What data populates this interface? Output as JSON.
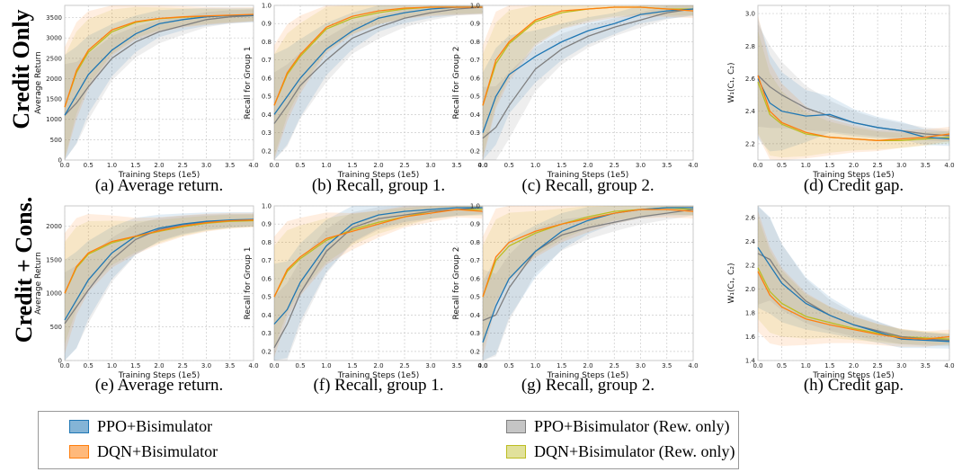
{
  "row_labels": [
    "Credit Only",
    "Credit + Cons."
  ],
  "legend": [
    {
      "label": "PPO+Bisimulator",
      "color": "#1f77b4"
    },
    {
      "label": "DQN+Bisimulator",
      "color": "#ff7f0e"
    },
    {
      "label": "PPO+Bisimulator (Rew. only)",
      "color": "#7f7f7f"
    },
    {
      "label": "DQN+Bisimulator (Rew. only)",
      "color": "#bcbd22"
    }
  ],
  "chart_data": [
    {
      "type": "line",
      "caption": "(a) Average return.",
      "xlabel": "Training Steps (1e5)",
      "ylabel": "Average Return",
      "xlim": [
        0,
        4
      ],
      "ylim": [
        0,
        3800
      ],
      "xticks": [
        "0.0",
        "0.5",
        "1.0",
        "1.5",
        "2.0",
        "2.5",
        "3.0",
        "3.5",
        "4.0"
      ],
      "yticks": [
        "0",
        "500",
        "1000",
        "1500",
        "2000",
        "2500",
        "3000",
        "3500"
      ],
      "grid": true,
      "x": [
        0,
        0.25,
        0.5,
        1,
        1.5,
        2,
        2.5,
        3,
        3.5,
        4
      ],
      "series": [
        {
          "name": "PPO+Bisimulator",
          "values": [
            1100,
            1600,
            2100,
            2700,
            3100,
            3350,
            3450,
            3520,
            3550,
            3560
          ]
        },
        {
          "name": "DQN+Bisimulator",
          "values": [
            1300,
            2200,
            2700,
            3200,
            3400,
            3480,
            3520,
            3540,
            3560,
            3580
          ]
        },
        {
          "name": "PPO+Bisimulator (Rew. only)",
          "values": [
            1100,
            1400,
            1800,
            2500,
            2900,
            3150,
            3300,
            3450,
            3520,
            3550
          ]
        },
        {
          "name": "DQN+Bisimulator (Rew. only)",
          "values": [
            1300,
            2150,
            2650,
            3150,
            3380,
            3470,
            3510,
            3530,
            3550,
            3570
          ]
        }
      ]
    },
    {
      "type": "line",
      "caption": "(b) Recall, group 1.",
      "xlabel": "Training Steps (1e5)",
      "ylabel": "Recall for Group 1",
      "xlim": [
        0,
        4
      ],
      "ylim": [
        0.15,
        1.0
      ],
      "xticks": [
        "0.0",
        "0.5",
        "1.0",
        "1.5",
        "2.0",
        "2.5",
        "3.0",
        "3.5",
        "4.0"
      ],
      "yticks": [
        "0.2",
        "0.3",
        "0.4",
        "0.5",
        "0.6",
        "0.7",
        "0.8",
        "0.9",
        "1.0"
      ],
      "grid": true,
      "x": [
        0,
        0.25,
        0.5,
        1,
        1.5,
        2,
        2.5,
        3,
        3.5,
        4
      ],
      "series": [
        {
          "name": "PPO+Bisimulator",
          "values": [
            0.4,
            0.5,
            0.6,
            0.76,
            0.86,
            0.93,
            0.96,
            0.98,
            0.99,
            0.99
          ]
        },
        {
          "name": "DQN+Bisimulator",
          "values": [
            0.45,
            0.63,
            0.73,
            0.88,
            0.94,
            0.97,
            0.985,
            0.99,
            0.99,
            0.99
          ]
        },
        {
          "name": "PPO+Bisimulator (Rew. only)",
          "values": [
            0.35,
            0.45,
            0.56,
            0.7,
            0.82,
            0.88,
            0.93,
            0.96,
            0.98,
            0.99
          ]
        },
        {
          "name": "DQN+Bisimulator (Rew. only)",
          "values": [
            0.45,
            0.62,
            0.72,
            0.87,
            0.93,
            0.96,
            0.98,
            0.99,
            0.99,
            0.99
          ]
        }
      ]
    },
    {
      "type": "line",
      "caption": "(c) Recall, group 2.",
      "xlabel": "Training Steps (1e5)",
      "ylabel": "Recall for Group 2",
      "xlim": [
        0,
        4
      ],
      "ylim": [
        0.15,
        1.0
      ],
      "xticks": [
        "0.0",
        "0.5",
        "1.0",
        "1.5",
        "2.0",
        "2.5",
        "3.0",
        "3.5",
        "4.0"
      ],
      "yticks": [
        "0.2",
        "0.3",
        "0.4",
        "0.5",
        "0.6",
        "0.7",
        "0.8",
        "0.9",
        "1.0"
      ],
      "grid": true,
      "x": [
        0,
        0.25,
        0.5,
        1,
        1.5,
        2,
        2.5,
        3,
        3.5,
        4
      ],
      "series": [
        {
          "name": "PPO+Bisimulator",
          "values": [
            0.3,
            0.5,
            0.62,
            0.72,
            0.8,
            0.86,
            0.9,
            0.95,
            0.97,
            0.98
          ]
        },
        {
          "name": "DQN+Bisimulator",
          "values": [
            0.45,
            0.7,
            0.8,
            0.92,
            0.97,
            0.98,
            0.99,
            0.99,
            0.98,
            0.97
          ]
        },
        {
          "name": "PPO+Bisimulator (Rew. only)",
          "values": [
            0.27,
            0.33,
            0.45,
            0.65,
            0.76,
            0.83,
            0.88,
            0.92,
            0.96,
            0.98
          ]
        },
        {
          "name": "DQN+Bisimulator (Rew. only)",
          "values": [
            0.45,
            0.68,
            0.79,
            0.91,
            0.96,
            0.98,
            0.99,
            0.99,
            0.98,
            0.98
          ]
        }
      ]
    },
    {
      "type": "line",
      "caption": "(d) Credit gap.",
      "xlabel": "Training Steps (1e5)",
      "ylabel": "W₁(C₁, C₂)",
      "xlim": [
        0,
        4
      ],
      "ylim": [
        2.1,
        3.05
      ],
      "xticks": [
        "0.0",
        "0.5",
        "1.0",
        "1.5",
        "2.0",
        "2.5",
        "3.0",
        "3.5",
        "4.0"
      ],
      "yticks": [
        "2.2",
        "2.4",
        "2.6",
        "2.8",
        "3.0"
      ],
      "grid": true,
      "x": [
        0,
        0.25,
        0.5,
        1,
        1.5,
        2,
        2.5,
        3,
        3.5,
        4
      ],
      "series": [
        {
          "name": "PPO+Bisimulator",
          "values": [
            2.6,
            2.45,
            2.4,
            2.37,
            2.38,
            2.33,
            2.3,
            2.28,
            2.24,
            2.23
          ]
        },
        {
          "name": "DQN+Bisimulator",
          "values": [
            2.62,
            2.4,
            2.33,
            2.27,
            2.24,
            2.23,
            2.22,
            2.23,
            2.24,
            2.26
          ]
        },
        {
          "name": "PPO+Bisimulator (Rew. only)",
          "values": [
            2.62,
            2.55,
            2.5,
            2.42,
            2.37,
            2.33,
            2.3,
            2.28,
            2.26,
            2.25
          ]
        },
        {
          "name": "DQN+Bisimulator (Rew. only)",
          "values": [
            2.58,
            2.38,
            2.32,
            2.26,
            2.24,
            2.23,
            2.22,
            2.22,
            2.23,
            2.24
          ]
        }
      ]
    },
    {
      "type": "line",
      "caption": "(e) Average return.",
      "xlabel": "Training Steps (1e5)",
      "ylabel": "Average Return",
      "xlim": [
        0,
        4
      ],
      "ylim": [
        0,
        2300
      ],
      "xticks": [
        "0.0",
        "0.5",
        "1.0",
        "1.5",
        "2.0",
        "2.5",
        "3.0",
        "3.5",
        "4.0"
      ],
      "yticks": [
        "0",
        "500",
        "1000",
        "1500",
        "2000"
      ],
      "grid": true,
      "x": [
        0,
        0.25,
        0.5,
        1,
        1.5,
        2,
        2.5,
        3,
        3.5,
        4
      ],
      "series": [
        {
          "name": "PPO+Bisimulator",
          "values": [
            600,
            900,
            1200,
            1600,
            1850,
            1970,
            2030,
            2070,
            2090,
            2100
          ]
        },
        {
          "name": "DQN+Bisimulator",
          "values": [
            1000,
            1400,
            1600,
            1770,
            1850,
            1930,
            2000,
            2050,
            2080,
            2090
          ]
        },
        {
          "name": "PPO+Bisimulator (Rew. only)",
          "values": [
            550,
            800,
            1050,
            1500,
            1800,
            1950,
            2020,
            2060,
            2080,
            2090
          ]
        },
        {
          "name": "DQN+Bisimulator (Rew. only)",
          "values": [
            1000,
            1380,
            1580,
            1750,
            1840,
            1920,
            1990,
            2040,
            2070,
            2080
          ]
        }
      ]
    },
    {
      "type": "line",
      "caption": "(f) Recall, group 1.",
      "xlabel": "Training Steps (1e5)",
      "ylabel": "Recall for Group 1",
      "xlim": [
        0,
        4
      ],
      "ylim": [
        0.15,
        1.0
      ],
      "xticks": [
        "0.0",
        "0.5",
        "1.0",
        "1.5",
        "2.0",
        "2.5",
        "3.0",
        "3.5",
        "4.0"
      ],
      "yticks": [
        "0.2",
        "0.3",
        "0.4",
        "0.5",
        "0.6",
        "0.7",
        "0.8",
        "0.9",
        "1.0"
      ],
      "grid": true,
      "x": [
        0,
        0.25,
        0.5,
        1,
        1.5,
        2,
        2.5,
        3,
        3.5,
        4
      ],
      "series": [
        {
          "name": "PPO+Bisimulator",
          "values": [
            0.35,
            0.43,
            0.58,
            0.78,
            0.9,
            0.95,
            0.97,
            0.98,
            0.99,
            0.99
          ]
        },
        {
          "name": "DQN+Bisimulator",
          "values": [
            0.5,
            0.65,
            0.72,
            0.82,
            0.86,
            0.9,
            0.94,
            0.96,
            0.98,
            0.97
          ]
        },
        {
          "name": "PPO+Bisimulator (Rew. only)",
          "values": [
            0.22,
            0.35,
            0.52,
            0.75,
            0.88,
            0.93,
            0.95,
            0.97,
            0.98,
            0.99
          ]
        },
        {
          "name": "DQN+Bisimulator (Rew. only)",
          "values": [
            0.5,
            0.64,
            0.71,
            0.81,
            0.87,
            0.91,
            0.94,
            0.97,
            0.98,
            0.98
          ]
        }
      ]
    },
    {
      "type": "line",
      "caption": "(g) Recall, group 2.",
      "xlabel": "Training Steps (1e5)",
      "ylabel": "Recall for Group 2",
      "xlim": [
        0,
        4
      ],
      "ylim": [
        0.15,
        1.0
      ],
      "xticks": [
        "0.0",
        "0.5",
        "1.0",
        "1.5",
        "2.0",
        "2.5",
        "3.0",
        "3.5",
        "4.0"
      ],
      "yticks": [
        "0.2",
        "0.3",
        "0.4",
        "0.5",
        "0.6",
        "0.7",
        "0.8",
        "0.9",
        "1.0"
      ],
      "grid": true,
      "x": [
        0,
        0.25,
        0.5,
        1,
        1.5,
        2,
        2.5,
        3,
        3.5,
        4
      ],
      "series": [
        {
          "name": "PPO+Bisimulator",
          "values": [
            0.25,
            0.45,
            0.6,
            0.75,
            0.86,
            0.92,
            0.96,
            0.98,
            0.99,
            0.99
          ]
        },
        {
          "name": "DQN+Bisimulator",
          "values": [
            0.5,
            0.72,
            0.8,
            0.86,
            0.9,
            0.93,
            0.96,
            0.98,
            0.98,
            0.97
          ]
        },
        {
          "name": "PPO+Bisimulator (Rew. only)",
          "values": [
            0.37,
            0.4,
            0.55,
            0.75,
            0.84,
            0.88,
            0.91,
            0.94,
            0.96,
            0.98
          ]
        },
        {
          "name": "DQN+Bisimulator (Rew. only)",
          "values": [
            0.5,
            0.7,
            0.78,
            0.85,
            0.9,
            0.94,
            0.97,
            0.98,
            0.99,
            0.98
          ]
        }
      ]
    },
    {
      "type": "line",
      "caption": "(h) Credit gap.",
      "xlabel": "Training Steps (1e5)",
      "ylabel": "W₁(C₁, C₂)",
      "xlim": [
        0,
        4
      ],
      "ylim": [
        1.4,
        2.7
      ],
      "xticks": [
        "0.0",
        "0.5",
        "1.0",
        "1.5",
        "2.0",
        "2.5",
        "3.0",
        "3.5",
        "4.0"
      ],
      "yticks": [
        "1.4",
        "1.6",
        "1.8",
        "2.0",
        "2.2",
        "2.4",
        "2.6"
      ],
      "grid": true,
      "x": [
        0,
        0.25,
        0.5,
        1,
        1.5,
        2,
        2.5,
        3,
        3.5,
        4
      ],
      "series": [
        {
          "name": "PPO+Bisimulator",
          "values": [
            2.35,
            2.2,
            2.05,
            1.88,
            1.78,
            1.7,
            1.64,
            1.58,
            1.57,
            1.56
          ]
        },
        {
          "name": "DQN+Bisimulator",
          "values": [
            2.15,
            1.95,
            1.85,
            1.75,
            1.7,
            1.66,
            1.62,
            1.59,
            1.58,
            1.6
          ]
        },
        {
          "name": "PPO+Bisimulator (Rew. only)",
          "values": [
            2.3,
            2.25,
            2.1,
            1.9,
            1.78,
            1.7,
            1.65,
            1.6,
            1.58,
            1.57
          ]
        },
        {
          "name": "DQN+Bisimulator (Rew. only)",
          "values": [
            2.18,
            1.98,
            1.88,
            1.77,
            1.72,
            1.67,
            1.63,
            1.6,
            1.59,
            1.58
          ]
        }
      ]
    }
  ]
}
